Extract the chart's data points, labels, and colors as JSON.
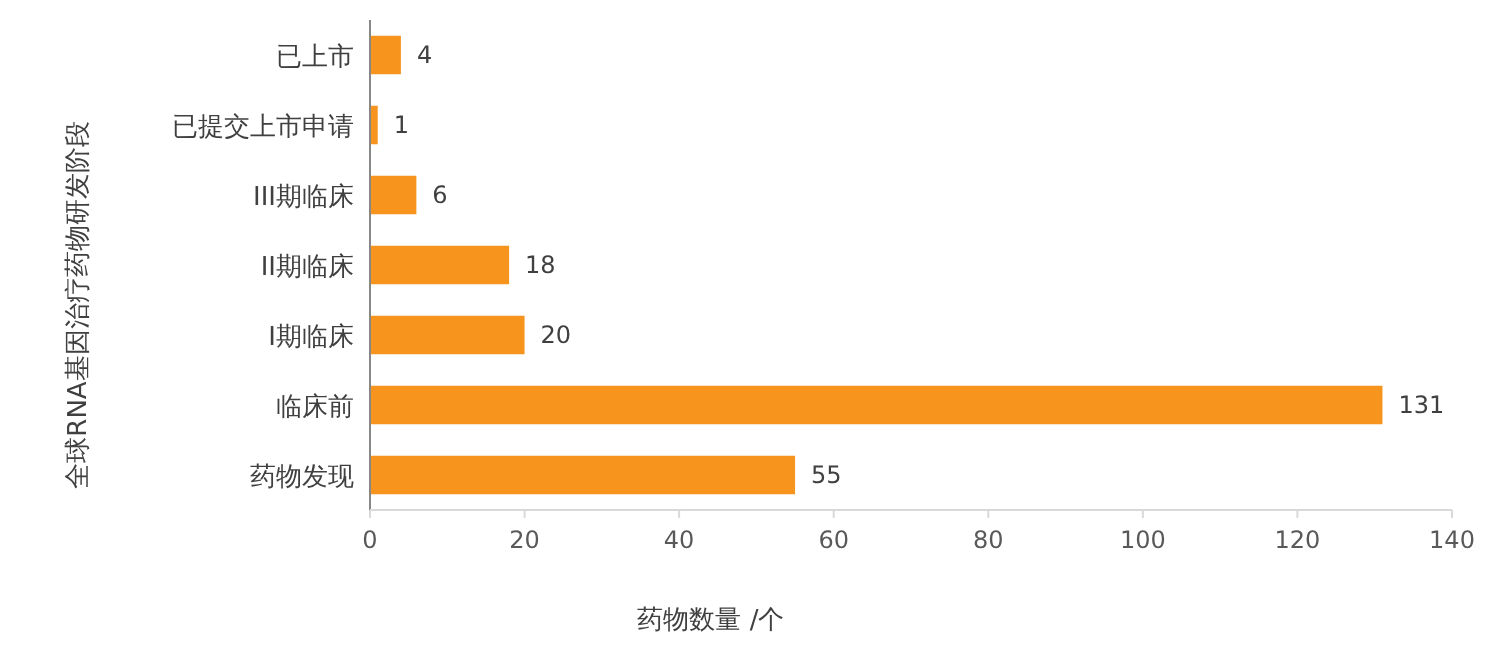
{
  "chart_data": {
    "type": "bar",
    "orientation": "horizontal",
    "categories": [
      "已上市",
      "已提交上市申请",
      "III期临床",
      "II期临床",
      "I期临床",
      "临床前",
      "药物发现"
    ],
    "values": [
      4,
      1,
      6,
      18,
      20,
      131,
      55
    ],
    "color": "#f7941d",
    "xlim": [
      0,
      140
    ],
    "xticks": [
      0,
      20,
      40,
      60,
      80,
      100,
      120,
      140
    ],
    "xlabel": "药物数量 /个",
    "ylabel": "全球RNA基因治疗药物研发阶段",
    "data_labels": true,
    "grid": false
  }
}
